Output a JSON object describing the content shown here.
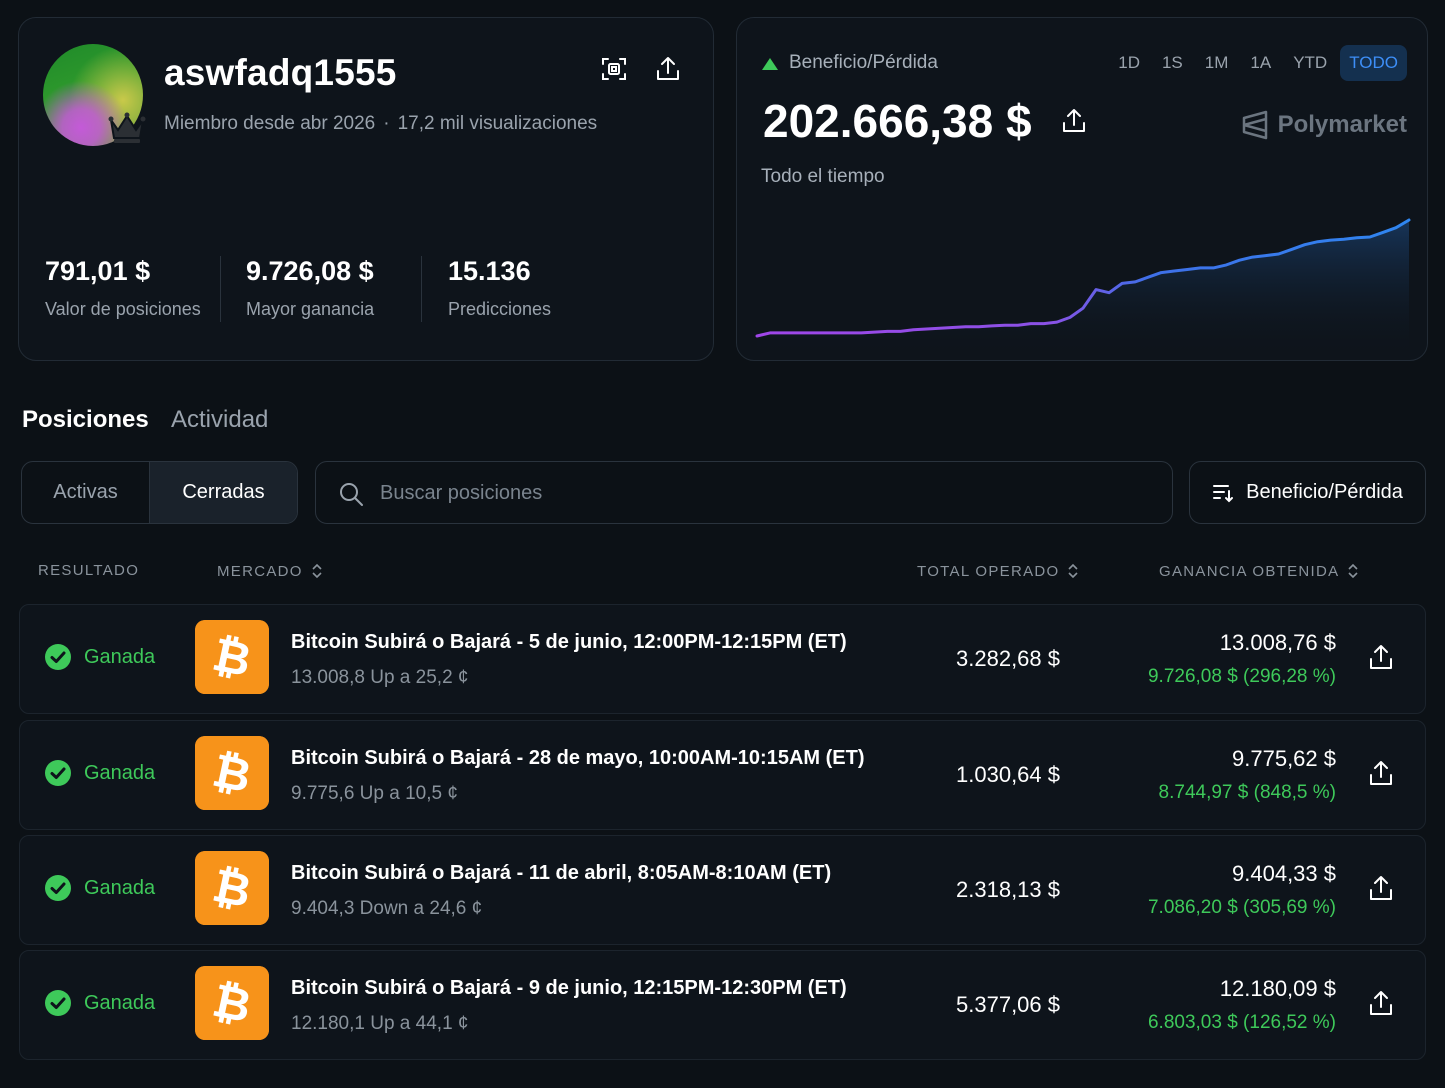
{
  "profile": {
    "username": "aswfadq1555",
    "member_since": "Miembro desde abr 2026",
    "separator": "·",
    "views": "17,2 mil visualizaciones",
    "stats": [
      {
        "value": "791,01 $",
        "label": "Valor de posiciones"
      },
      {
        "value": "9.726,08 $",
        "label": "Mayor ganancia"
      },
      {
        "value": "15.136",
        "label": "Predicciones"
      }
    ]
  },
  "pnl": {
    "label": "Beneficio/Pérdida",
    "value": "202.666,38 $",
    "period": "Todo el tiempo",
    "brand": "Polymarket",
    "ranges": [
      "1D",
      "1S",
      "1M",
      "1A",
      "YTD",
      "TODO"
    ],
    "active_range": "TODO",
    "colors": {
      "up": "#3ec95a",
      "line_start": "#a046e8",
      "line_end": "#2f86f0"
    }
  },
  "chart_data": {
    "type": "area",
    "x": [
      0,
      1,
      2,
      3,
      4,
      5,
      6,
      7,
      8,
      9,
      10,
      11,
      12,
      13,
      14,
      15,
      16,
      17,
      18,
      19,
      20,
      21,
      22,
      23,
      24,
      25,
      26,
      27,
      28,
      29,
      30,
      31,
      32,
      33,
      34,
      35,
      36,
      37,
      38,
      39,
      40,
      41,
      42,
      43,
      44,
      45,
      46,
      47,
      48,
      49,
      50
    ],
    "values": [
      0,
      2,
      2,
      2,
      2,
      2,
      2,
      2,
      2,
      2.5,
      3,
      3,
      4,
      4.5,
      5,
      5.5,
      6,
      6,
      6.5,
      7,
      7,
      8,
      8,
      9,
      12,
      18,
      30,
      28,
      34,
      35,
      38,
      41,
      42,
      43,
      44,
      44,
      46,
      49,
      51,
      52,
      53,
      56,
      59,
      61,
      62,
      62.5,
      63.5,
      64,
      67,
      70,
      75
    ],
    "title": "",
    "xlabel": "",
    "ylabel": "",
    "grid": false,
    "legend": "none"
  },
  "tabs": {
    "positions": "Posiciones",
    "activity": "Actividad"
  },
  "filters": {
    "active": "Activas",
    "closed": "Cerradas",
    "search_placeholder": "Buscar posiciones",
    "sort_label": "Beneficio/Pérdida"
  },
  "table": {
    "headers": {
      "result": "RESULTADO",
      "market": "MERCADO",
      "traded": "TOTAL OPERADO",
      "won": "GANANCIA OBTENIDA"
    },
    "rows": [
      {
        "result": "Ganada",
        "title": "Bitcoin Subirá o Bajará - 5 de junio, 12:00PM-12:15PM (ET)",
        "sub": "13.008,8 Up a 25,2 ¢",
        "traded": "3.282,68 $",
        "won": "13.008,76 $",
        "gain": "9.726,08 $ (296,28 %)"
      },
      {
        "result": "Ganada",
        "title": "Bitcoin Subirá o Bajará - 28 de mayo, 10:00AM-10:15AM (ET)",
        "sub": "9.775,6 Up a 10,5 ¢",
        "traded": "1.030,64 $",
        "won": "9.775,62 $",
        "gain": "8.744,97 $ (848,5 %)"
      },
      {
        "result": "Ganada",
        "title": "Bitcoin Subirá o Bajará - 11 de abril, 8:05AM-8:10AM (ET)",
        "sub": "9.404,3 Down a 24,6 ¢",
        "traded": "2.318,13 $",
        "won": "9.404,33 $",
        "gain": "7.086,20 $ (305,69 %)"
      },
      {
        "result": "Ganada",
        "title": "Bitcoin Subirá o Bajará - 9 de junio, 12:15PM-12:30PM (ET)",
        "sub": "12.180,1 Up a 44,1 ¢",
        "traded": "5.377,06 $",
        "won": "12.180,09 $",
        "gain": "6.803,03 $ (126,52 %)"
      }
    ]
  }
}
